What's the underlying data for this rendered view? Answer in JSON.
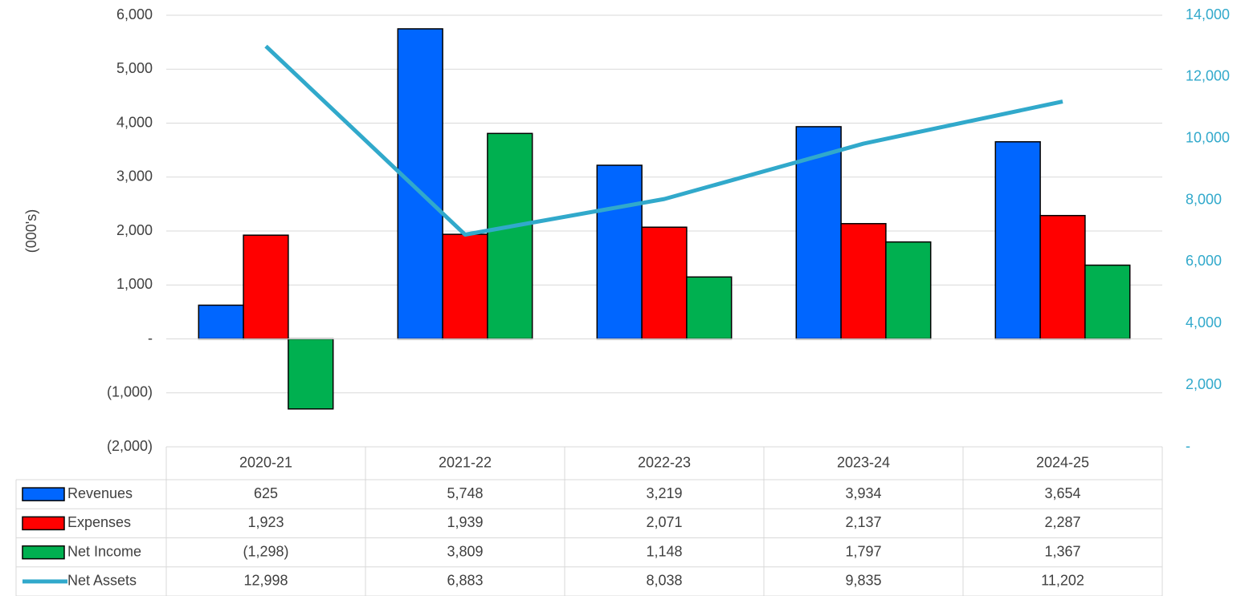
{
  "chart_data": {
    "type": "bar",
    "y_label": "(000's)",
    "categories": [
      "2020-21",
      "2021-22",
      "2022-23",
      "2023-24",
      "2024-25"
    ],
    "series": [
      {
        "name": "Revenues",
        "color": "#0066ff",
        "values": [
          625,
          5748,
          3219,
          3934,
          3654
        ],
        "value_labels": [
          "625",
          "5,748",
          "3,219",
          "3,934",
          "3,654"
        ]
      },
      {
        "name": "Expenses",
        "color": "#ff0000",
        "values": [
          1923,
          1939,
          2071,
          2137,
          2287
        ],
        "value_labels": [
          "1,923",
          "1,939",
          "2,071",
          "2,137",
          "2,287"
        ]
      },
      {
        "name": "Net Income",
        "color": "#00b050",
        "values": [
          -1298,
          3809,
          1148,
          1797,
          1367
        ],
        "value_labels": [
          "(1,298)",
          "3,809",
          "1,148",
          "1,797",
          "1,367"
        ]
      },
      {
        "name": "Net Assets",
        "color": "#31a9cb",
        "type": "line",
        "axis": "y2",
        "values": [
          12998,
          6883,
          8038,
          9835,
          11202
        ],
        "value_labels": [
          "12,998",
          "6,883",
          "8,038",
          "9,835",
          "11,202"
        ]
      }
    ],
    "ylim": [
      -2000,
      6000
    ],
    "yticks": [
      {
        "value": -2000,
        "label": "(2,000)"
      },
      {
        "value": -1000,
        "label": "(1,000)"
      },
      {
        "value": 0,
        "label": "-"
      },
      {
        "value": 1000,
        "label": "1,000"
      },
      {
        "value": 2000,
        "label": "2,000"
      },
      {
        "value": 3000,
        "label": "3,000"
      },
      {
        "value": 4000,
        "label": "4,000"
      },
      {
        "value": 5000,
        "label": "5,000"
      },
      {
        "value": 6000,
        "label": "6,000"
      }
    ],
    "y2lim": [
      0,
      14000
    ],
    "y2ticks": [
      {
        "value": 0,
        "label": "-"
      },
      {
        "value": 2000,
        "label": "2,000"
      },
      {
        "value": 4000,
        "label": "4,000"
      },
      {
        "value": 6000,
        "label": "6,000"
      },
      {
        "value": 8000,
        "label": "8,000"
      },
      {
        "value": 10000,
        "label": "10,000"
      },
      {
        "value": 12000,
        "label": "12,000"
      },
      {
        "value": 14000,
        "label": "14,000"
      }
    ],
    "y2_color": "#31a9cb",
    "grid": true
  }
}
